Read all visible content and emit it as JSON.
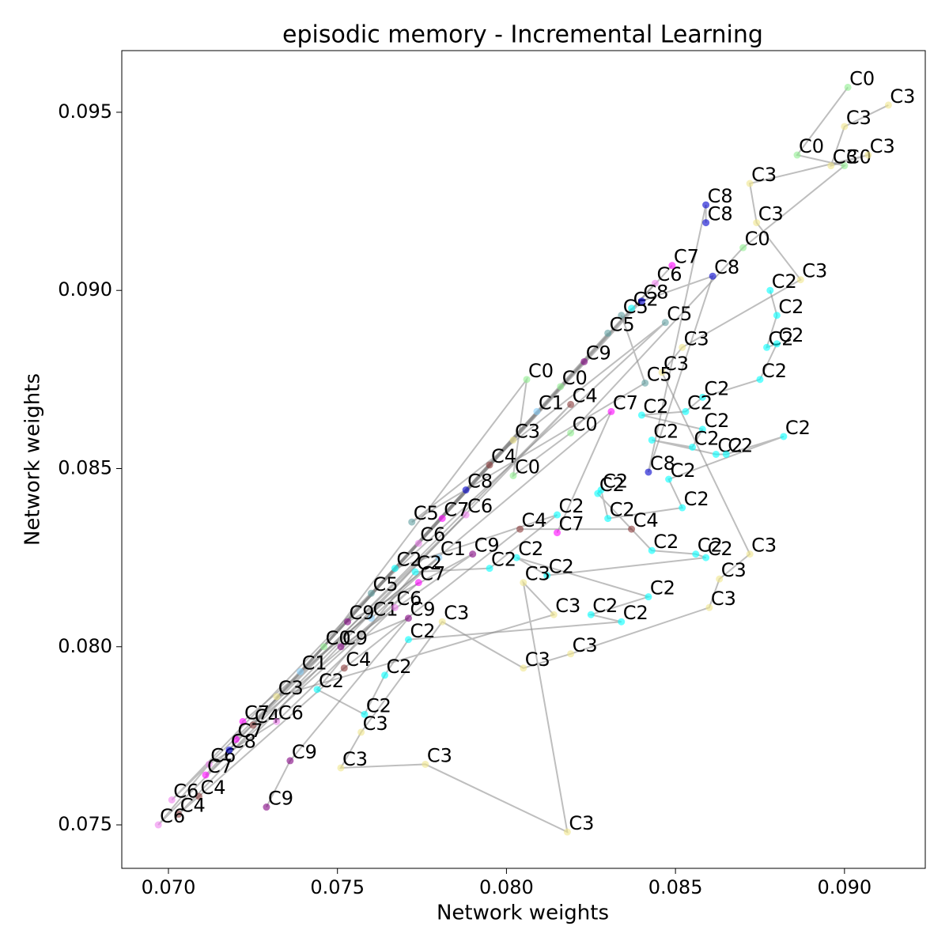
{
  "chart_data": {
    "type": "scatter",
    "title": "episodic memory - Incremental Learning",
    "x_label": "Network weights",
    "y_label": "Network weights",
    "xlim": [
      0.06862,
      0.09239
    ],
    "ylim": [
      0.07378,
      0.09673
    ],
    "xticks": [
      {
        "value": 0.07,
        "label": "0.070"
      },
      0.075,
      {
        "value": 0.08,
        "label": "0.080"
      },
      0.085,
      {
        "value": 0.09,
        "label": "0.090"
      }
    ],
    "yticks": [
      0.075,
      {
        "value": 0.08,
        "label": "0.080"
      },
      0.085,
      {
        "value": 0.09,
        "label": "0.090"
      },
      0.095
    ],
    "series": [
      {
        "name": "C0",
        "color": "#90ee90",
        "x": [
          0.0901,
          0.0886,
          0.09,
          0.087,
          0.0819,
          0.0802,
          0.0806,
          0.0746,
          0.0816
        ],
        "y": [
          0.0957,
          0.0938,
          0.0935,
          0.0912,
          0.086,
          0.0848,
          0.0875,
          0.08,
          0.0873
        ]
      },
      {
        "name": "C1",
        "color": "#87cefa",
        "x": [
          0.076,
          0.078,
          0.0739,
          0.0809
        ],
        "y": [
          0.0808,
          0.0825,
          0.0793,
          0.0866
        ]
      },
      {
        "name": "C2",
        "color": "#00ffff",
        "x": [
          0.0878,
          0.088,
          0.0877,
          0.088,
          0.0875,
          0.0858,
          0.0853,
          0.084,
          0.0858,
          0.0855,
          0.0843,
          0.0862,
          0.0865,
          0.0882,
          0.0848,
          0.0852,
          0.083,
          0.0828,
          0.0827,
          0.0843,
          0.0856,
          0.0859,
          0.0812,
          0.0803,
          0.0842,
          0.0825,
          0.0834,
          0.0771,
          0.0764,
          0.0758,
          0.0744,
          0.0773,
          0.0795,
          0.0815,
          0.0767,
          0.0837
        ],
        "y": [
          0.09,
          0.0893,
          0.0884,
          0.0885,
          0.0875,
          0.087,
          0.0866,
          0.0865,
          0.0861,
          0.0856,
          0.0858,
          0.0854,
          0.0854,
          0.0859,
          0.0847,
          0.0839,
          0.0836,
          0.0844,
          0.0843,
          0.0827,
          0.0826,
          0.0825,
          0.082,
          0.0825,
          0.0814,
          0.0809,
          0.0807,
          0.0802,
          0.0792,
          0.0781,
          0.0788,
          0.0821,
          0.0822,
          0.0837,
          0.0822,
          0.0895
        ]
      },
      {
        "name": "C3",
        "color": "#f0e68c",
        "x": [
          0.0913,
          0.09,
          0.0896,
          0.0907,
          0.0872,
          0.0874,
          0.0887,
          0.0852,
          0.0846,
          0.0872,
          0.0863,
          0.086,
          0.0819,
          0.0805,
          0.0781,
          0.0757,
          0.0751,
          0.0776,
          0.0818,
          0.0805,
          0.0814,
          0.0732,
          0.0802
        ],
        "y": [
          0.0952,
          0.0946,
          0.0935,
          0.0938,
          0.093,
          0.0919,
          0.0903,
          0.0884,
          0.0877,
          0.0826,
          0.0819,
          0.0811,
          0.0798,
          0.0794,
          0.0807,
          0.0776,
          0.0766,
          0.0767,
          0.0748,
          0.0818,
          0.0809,
          0.0786,
          0.0858
        ]
      },
      {
        "name": "C4",
        "color": "#8b3a3a",
        "x": [
          0.0837,
          0.0804,
          0.0752,
          0.0709,
          0.0703,
          0.0819,
          0.0725,
          0.0795
        ],
        "y": [
          0.0833,
          0.0833,
          0.0794,
          0.0758,
          0.0753,
          0.0868,
          0.0778,
          0.0851
        ]
      },
      {
        "name": "C5",
        "color": "#5f9ea0",
        "x": [
          0.0834,
          0.0841,
          0.0772,
          0.0847,
          0.076,
          0.083
        ],
        "y": [
          0.0893,
          0.0874,
          0.0835,
          0.0891,
          0.0815,
          0.0888
        ]
      },
      {
        "name": "C6",
        "color": "#ee82ee",
        "x": [
          0.0767,
          0.0732,
          0.0712,
          0.0697,
          0.0788,
          0.0701,
          0.0774,
          0.0844
        ],
        "y": [
          0.0811,
          0.0779,
          0.0767,
          0.075,
          0.0837,
          0.0757,
          0.0829,
          0.0902
        ]
      },
      {
        "name": "C7",
        "color": "#ff00ff",
        "x": [
          0.0815,
          0.0831,
          0.0722,
          0.072,
          0.0774,
          0.0711,
          0.0781,
          0.0849
        ],
        "y": [
          0.0832,
          0.0866,
          0.0779,
          0.0774,
          0.0818,
          0.0764,
          0.0836,
          0.0907
        ]
      },
      {
        "name": "C8",
        "color": "#0000cd",
        "x": [
          0.0859,
          0.0859,
          0.0842,
          0.0861,
          0.084,
          0.0718,
          0.0788
        ],
        "y": [
          0.0919,
          0.0924,
          0.0849,
          0.0904,
          0.0897,
          0.0771,
          0.0844
        ]
      },
      {
        "name": "C9",
        "color": "#800080",
        "x": [
          0.0729,
          0.0736,
          0.0771,
          0.0751,
          0.079,
          0.0753,
          0.0823
        ],
        "y": [
          0.0755,
          0.0768,
          0.0808,
          0.08,
          0.0826,
          0.0807,
          0.088
        ]
      }
    ]
  }
}
